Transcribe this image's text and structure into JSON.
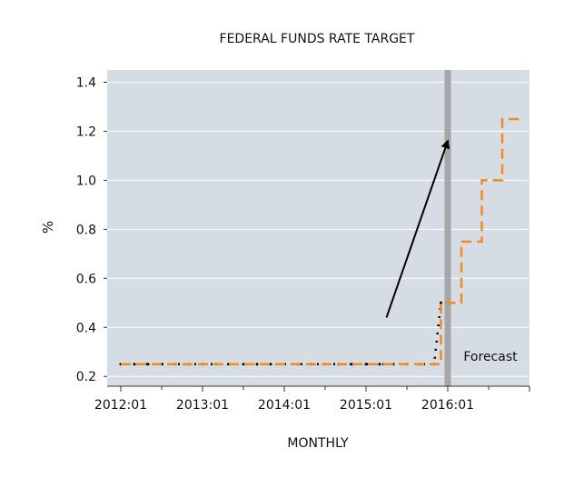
{
  "chart_data": {
    "type": "line",
    "title": "FEDERAL FUNDS RATE TARGET",
    "xlabel": "MONTHLY",
    "ylabel": "%",
    "x_tick_labels": [
      "2012:01",
      "2013:01",
      "2014:01",
      "2015:01",
      "2016:01"
    ],
    "y_ticks": [
      0.2,
      0.4,
      0.6,
      0.8,
      1.0,
      1.2,
      1.4
    ],
    "y_tick_labels": [
      "0.2",
      "0.4",
      "0.6",
      "0.8",
      "1.0",
      "1.2",
      "1.4"
    ],
    "ylim": [
      0.16,
      1.45
    ],
    "xlim": [
      "2011:11",
      "2017:01"
    ],
    "grid": true,
    "annotations": {
      "forecast_label": "Forecast",
      "forecast_start": "2016:01",
      "arrow": {
        "from": [
          "2015:04",
          0.44
        ],
        "to": [
          "2016:01",
          1.16
        ]
      }
    },
    "colors": {
      "background": "#d6dce3",
      "grid": "#ffffff",
      "actual": "#000000",
      "forecast": "#f28a1e",
      "forecast_band": "#a6a6a6",
      "arrow": "#000000"
    },
    "series": [
      {
        "style": "dotted-black",
        "x": [
          "2012:01",
          "2012:03",
          "2012:05",
          "2012:07",
          "2012:09",
          "2012:11",
          "2013:01",
          "2013:03",
          "2013:05",
          "2013:07",
          "2013:09",
          "2013:11",
          "2014:01",
          "2014:03",
          "2014:05",
          "2014:07",
          "2014:09",
          "2014:11",
          "2015:01",
          "2015:03",
          "2015:05",
          "2015:07",
          "2015:09",
          "2015:11",
          "2015:12"
        ],
        "values": [
          0.25,
          0.25,
          0.25,
          0.25,
          0.25,
          0.25,
          0.25,
          0.25,
          0.25,
          0.25,
          0.25,
          0.25,
          0.25,
          0.25,
          0.25,
          0.25,
          0.25,
          0.25,
          0.25,
          0.25,
          0.25,
          0.25,
          0.25,
          0.25,
          0.5
        ]
      },
      {
        "style": "dashed-orange",
        "x": [
          "2012:01",
          "2015:11",
          "2015:12",
          "2016:02",
          "2016:03",
          "2016:05",
          "2016:06",
          "2016:08",
          "2016:09",
          "2016:11",
          "2016:12"
        ],
        "values": [
          0.25,
          0.25,
          0.5,
          0.5,
          0.75,
          0.75,
          1.0,
          1.0,
          1.25,
          1.25,
          1.25
        ],
        "step": "post"
      }
    ]
  }
}
